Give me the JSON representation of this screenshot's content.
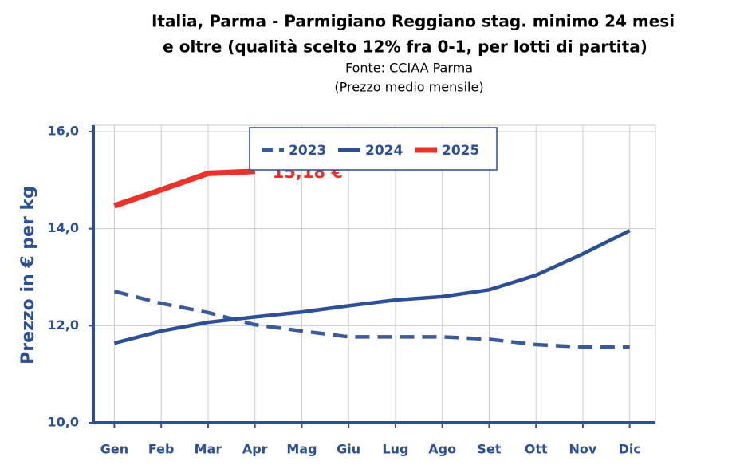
{
  "chart_data": {
    "type": "line",
    "title": [
      "Italia, Parma - Parmigiano Reggiano stag. minimo 24 mesi",
      "e oltre (qualità scelto 12% fra 0-1, per lotti di partita)"
    ],
    "subtitle": [
      "Fonte: CCIAA Parma",
      "(Prezzo medio mensile)"
    ],
    "y_label": "Prezzo in € per kg",
    "categories": [
      "Gen",
      "Feb",
      "Mar",
      "Apr",
      "Mag",
      "Giu",
      "Lug",
      "Ago",
      "Set",
      "Ott",
      "Nov",
      "Dic"
    ],
    "series": [
      {
        "name": "2023",
        "color": "#3a5a9c",
        "dashed": true,
        "values": [
          12.71,
          12.46,
          12.27,
          12.02,
          11.89,
          11.77,
          11.77,
          11.77,
          11.72,
          11.61,
          11.56,
          11.56
        ]
      },
      {
        "name": "2024",
        "color": "#2c4f96",
        "dashed": false,
        "values": [
          11.64,
          11.89,
          12.07,
          12.18,
          12.28,
          12.41,
          12.53,
          12.6,
          12.74,
          13.04,
          13.48,
          13.96
        ]
      },
      {
        "name": "2025",
        "color": "#e8322a",
        "dashed": false,
        "values": [
          14.47,
          14.8,
          15.14,
          15.18,
          null,
          null,
          null,
          null,
          null,
          null,
          null,
          null
        ],
        "value_labels": [
          null,
          null,
          null,
          "15,18 €",
          null,
          null,
          null,
          null,
          null,
          null,
          null,
          null
        ]
      }
    ],
    "ylim": [
      10,
      16
    ],
    "yticks": [
      {
        "value": 10,
        "label": "10,0"
      },
      {
        "value": 12,
        "label": "12,0"
      },
      {
        "value": 14,
        "label": "14,0"
      },
      {
        "value": 16,
        "label": "16,0"
      }
    ],
    "grid": true,
    "legend": "top"
  }
}
